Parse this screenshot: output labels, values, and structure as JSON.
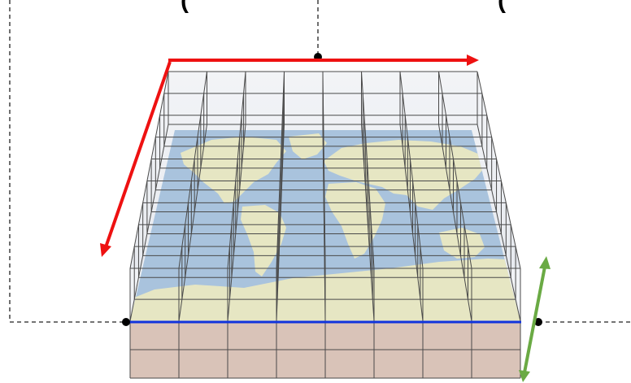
{
  "labels": {
    "top_left": "(",
    "top_right": "("
  },
  "grid": {
    "columns": 8,
    "rows": 9,
    "vertical_layers": 2
  },
  "colors": {
    "ocean": "#a9c3dd",
    "land": "#e6e6c3",
    "earth_side": "#d2b8ac",
    "grid_line": "#4a4a4a",
    "arrow_red": "#ee1111",
    "arrow_green": "#6aaa44",
    "surface_line": "#1133dd",
    "dashed_line": "#222222"
  }
}
